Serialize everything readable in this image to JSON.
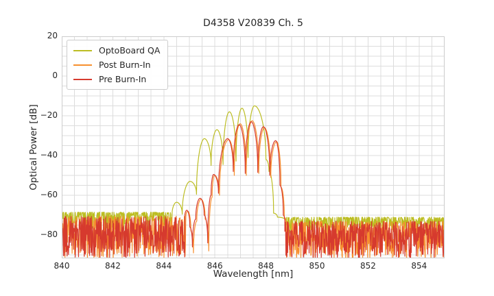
{
  "chart_data": {
    "type": "line",
    "title": "D4358 V20839 Ch. 5",
    "xlabel": "Wavelength [nm]",
    "ylabel": "Optical Power [dB]",
    "xlim": [
      840,
      855
    ],
    "ylim": [
      -91.7,
      20
    ],
    "x_ticks": [
      840,
      842,
      844,
      846,
      848,
      850,
      852,
      854
    ],
    "y_ticks": [
      20,
      0,
      -20,
      -40,
      -60,
      -80
    ],
    "grid": {
      "x_step_nm": 0.5,
      "y_step_db": 5,
      "color": "#dcdcdc",
      "border_color": "#cccccc"
    },
    "legend_position": "upper left",
    "series": [
      {
        "name": "OptoBoard QA",
        "color": "#bcbd22",
        "mode_spacing_nm": 0.49,
        "main_peak": [
          847.55,
          -15
        ],
        "noise_left": {
          "x_start": 840.0,
          "x_end": 844.32,
          "top_db": -68.5,
          "spread_db": 9,
          "concentration": 2.2
        },
        "noise_right": {
          "x_start": 848.78,
          "x_end": 855.0,
          "top_db": -71.0,
          "spread_db": 9,
          "concentration": 2.2
        },
        "profile": [
          [
            844.32,
            -70
          ],
          [
            844.5,
            -63.5
          ],
          [
            844.72,
            -69.5
          ],
          [
            845.03,
            -53
          ],
          [
            845.28,
            -59.5
          ],
          [
            845.59,
            -31.5
          ],
          [
            845.85,
            -45
          ],
          [
            846.08,
            -27
          ],
          [
            846.32,
            -44.5
          ],
          [
            846.57,
            -18
          ],
          [
            846.83,
            -42.8
          ],
          [
            847.06,
            -16.2
          ],
          [
            847.3,
            -41
          ],
          [
            847.55,
            -15
          ],
          [
            848.0,
            -42
          ],
          [
            848.12,
            -48
          ],
          [
            848.3,
            -69
          ],
          [
            848.45,
            -71
          ],
          [
            848.78,
            -72.5
          ]
        ]
      },
      {
        "name": "Post Burn-In",
        "color": "#f78f2e",
        "mode_spacing_nm": 0.47,
        "main_peak": [
          847.46,
          -22.5
        ],
        "noise_left": {
          "x_start": 840.0,
          "x_end": 844.86,
          "top_db": -70.5,
          "spread_db": 21,
          "concentration": 1.3
        },
        "noise_right": {
          "x_start": 848.78,
          "x_end": 855.0,
          "top_db": -73.0,
          "spread_db": 19,
          "concentration": 1.3
        },
        "profile": [
          [
            844.86,
            -71
          ],
          [
            844.94,
            -68
          ],
          [
            845.06,
            -78
          ],
          [
            845.16,
            -89
          ],
          [
            845.29,
            -73
          ],
          [
            845.46,
            -62
          ],
          [
            845.62,
            -72
          ],
          [
            845.76,
            -88
          ],
          [
            845.89,
            -61
          ],
          [
            845.99,
            -50
          ],
          [
            846.18,
            -60
          ],
          [
            846.54,
            -32
          ],
          [
            846.76,
            -50
          ],
          [
            846.99,
            -24
          ],
          [
            847.23,
            -50
          ],
          [
            847.46,
            -22.5
          ],
          [
            847.72,
            -49
          ],
          [
            847.94,
            -26
          ],
          [
            848.19,
            -51
          ],
          [
            848.42,
            -33
          ],
          [
            848.59,
            -56
          ],
          [
            848.72,
            -71
          ],
          [
            848.78,
            -74
          ]
        ]
      },
      {
        "name": "Pre Burn-In",
        "color": "#d63a2e",
        "mode_spacing_nm": 0.47,
        "main_peak": [
          847.42,
          -23
        ],
        "noise_left": {
          "x_start": 840.0,
          "x_end": 844.82,
          "top_db": -70.5,
          "spread_db": 21,
          "concentration": 1.3
        },
        "noise_right": {
          "x_start": 848.74,
          "x_end": 855.0,
          "top_db": -73.0,
          "spread_db": 19,
          "concentration": 1.3
        },
        "profile": [
          [
            844.82,
            -71
          ],
          [
            844.9,
            -67.5
          ],
          [
            845.02,
            -76
          ],
          [
            845.12,
            -86
          ],
          [
            845.25,
            -72
          ],
          [
            845.42,
            -61.5
          ],
          [
            845.58,
            -70
          ],
          [
            845.72,
            -84
          ],
          [
            845.85,
            -60
          ],
          [
            845.95,
            -49.5
          ],
          [
            846.14,
            -59
          ],
          [
            846.5,
            -31.5
          ],
          [
            846.72,
            -48
          ],
          [
            846.95,
            -24.5
          ],
          [
            847.19,
            -49
          ],
          [
            847.42,
            -23
          ],
          [
            847.68,
            -48.5
          ],
          [
            847.9,
            -25.5
          ],
          [
            848.15,
            -50
          ],
          [
            848.38,
            -32.5
          ],
          [
            848.55,
            -55
          ],
          [
            848.68,
            -70
          ],
          [
            848.74,
            -73
          ]
        ]
      }
    ]
  }
}
